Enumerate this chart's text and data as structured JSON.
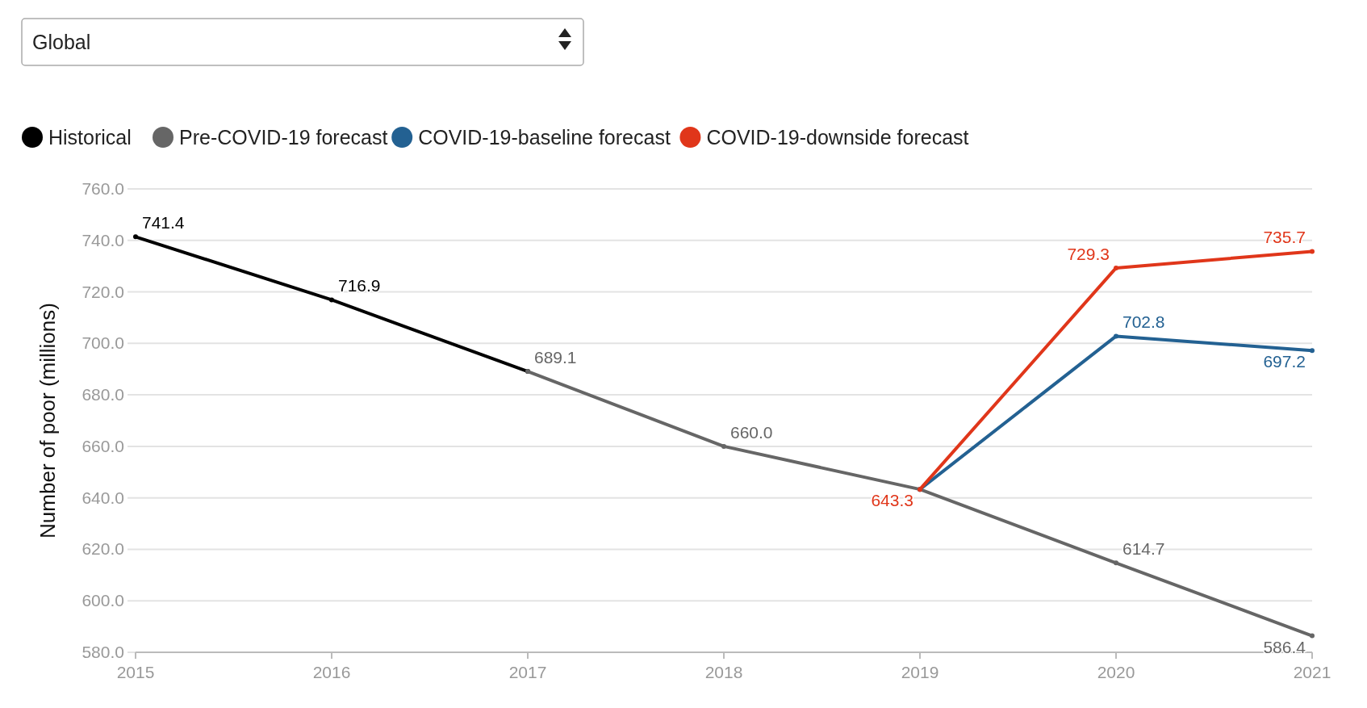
{
  "chart_data": {
    "type": "line",
    "subtitle": "Global",
    "ylabel": "Number of poor (millions)",
    "xlim": [
      2015,
      2021
    ],
    "xticks": [
      2015,
      2016,
      2017,
      2018,
      2019,
      2020,
      2021
    ],
    "ylim": [
      580,
      760
    ],
    "yticks": [
      {
        "value": 580,
        "label": "580.0"
      },
      {
        "value": 600,
        "label": "600.0"
      },
      {
        "value": 620,
        "label": "620.0"
      },
      {
        "value": 640,
        "label": "640.0"
      },
      {
        "value": 660,
        "label": "660.0"
      },
      {
        "value": 680,
        "label": "680.0"
      },
      {
        "value": 700,
        "label": "700.0"
      },
      {
        "value": 720,
        "label": "720.0"
      },
      {
        "value": 740,
        "label": "740.0"
      },
      {
        "value": 760,
        "label": "760.0"
      }
    ],
    "grid": "y",
    "legend": "top",
    "marker": "circle",
    "line_style": "solid",
    "series": [
      {
        "name": "Historical",
        "color": "#000000",
        "x": [
          2015,
          2016,
          2017
        ],
        "values": [
          741.4,
          716.9,
          689.1
        ],
        "value_labels": [
          "741.4",
          "716.9",
          null
        ]
      },
      {
        "name": "Pre-COVID-19 forecast",
        "color": "#666666",
        "x": [
          2017,
          2018,
          2019,
          2020,
          2021
        ],
        "values": [
          689.1,
          660.0,
          643.3,
          614.7,
          586.4
        ],
        "value_labels": [
          "689.1",
          "660.0",
          null,
          "614.7",
          "586.4"
        ]
      },
      {
        "name": "COVID-19-baseline forecast",
        "color": "#236192",
        "x": [
          2019,
          2020,
          2021
        ],
        "values": [
          643.3,
          702.8,
          697.2
        ],
        "value_labels": [
          null,
          "702.8",
          "697.2"
        ]
      },
      {
        "name": "COVID-19-downside forecast",
        "color": "#e0361a",
        "x": [
          2019,
          2020,
          2021
        ],
        "values": [
          643.3,
          729.3,
          735.7
        ],
        "value_labels": [
          "643.3",
          "729.3",
          "735.7"
        ]
      }
    ]
  }
}
